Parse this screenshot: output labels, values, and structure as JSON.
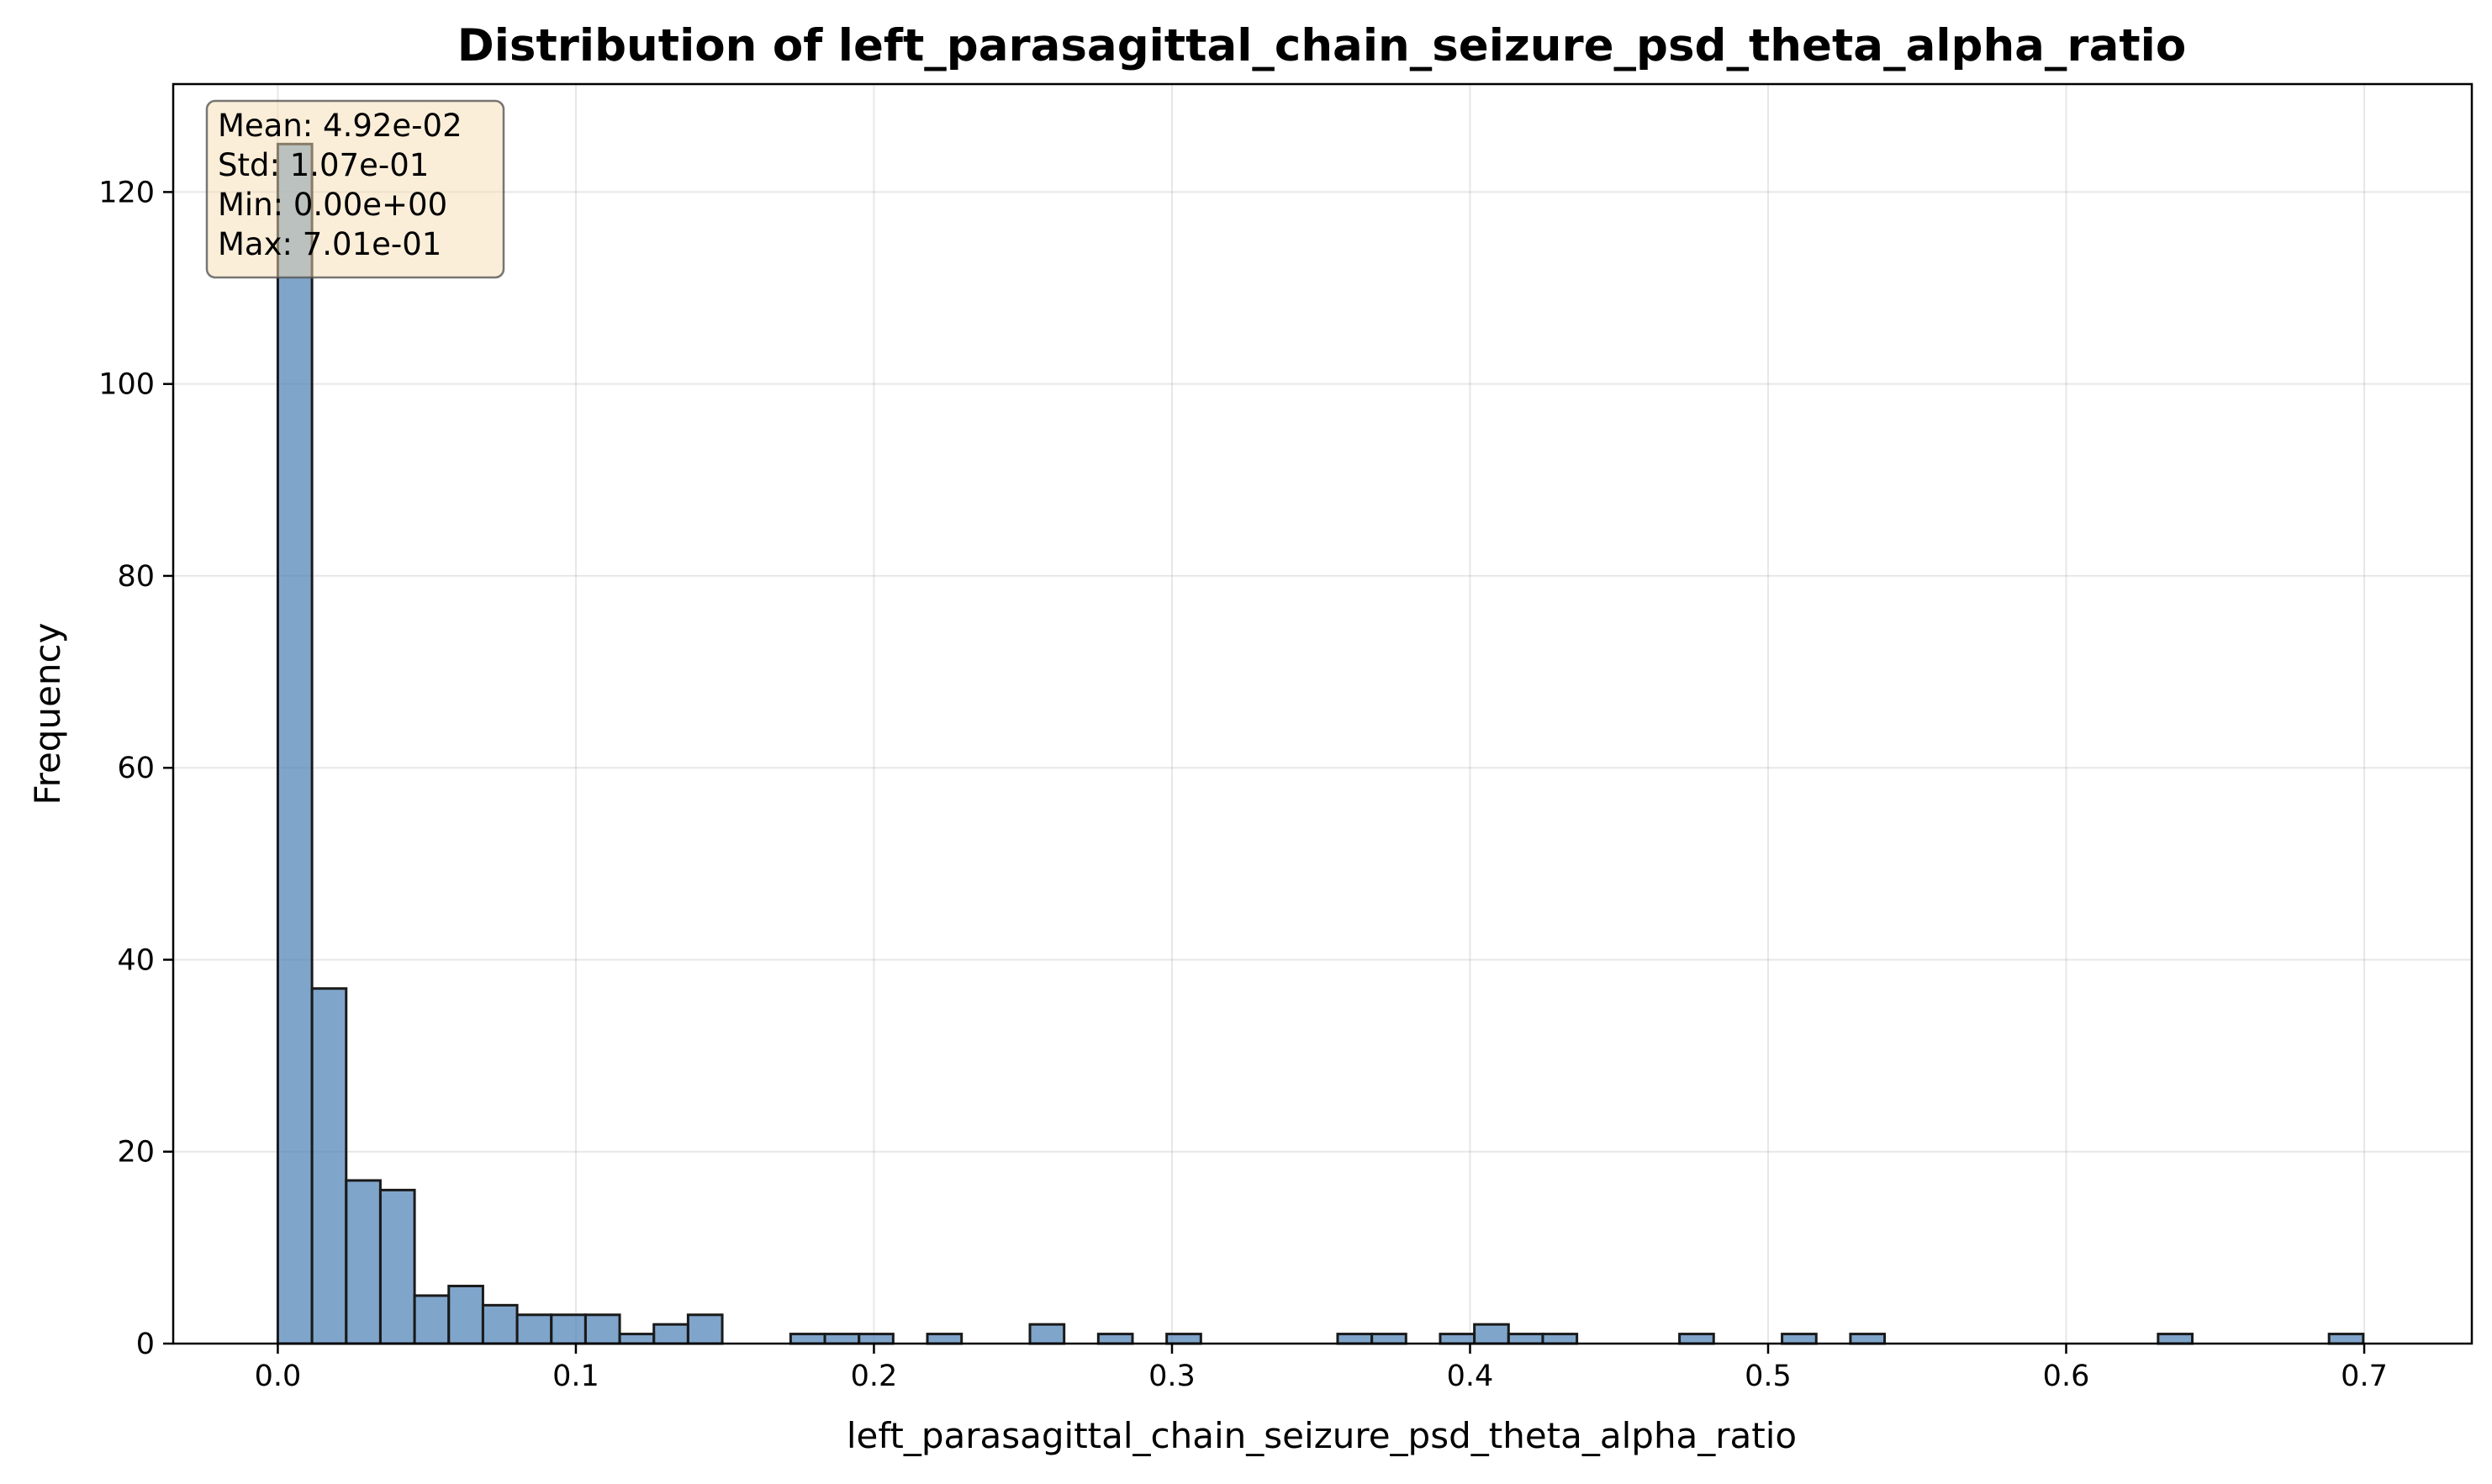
{
  "chart_data": {
    "type": "bar",
    "title": "Distribution of left_parasagittal_chain_seizure_psd_theta_alpha_ratio",
    "xlabel": "left_parasagittal_chain_seizure_psd_theta_alpha_ratio",
    "ylabel": "Frequency",
    "xlim": [
      -0.0351,
      0.7361
    ],
    "ylim": [
      0,
      131.25
    ],
    "xticks": [
      0.0,
      0.1,
      0.2,
      0.3,
      0.4,
      0.5,
      0.6,
      0.7
    ],
    "xtick_labels": [
      "0.0",
      "0.1",
      "0.2",
      "0.3",
      "0.4",
      "0.5",
      "0.6",
      "0.7"
    ],
    "yticks": [
      0,
      20,
      40,
      60,
      80,
      100,
      120
    ],
    "ytick_labels": [
      "0",
      "20",
      "40",
      "60",
      "80",
      "100",
      "120"
    ],
    "grid": true,
    "bin_start": 0.0,
    "bin_width": 0.01147,
    "counts": [
      125,
      37,
      17,
      16,
      5,
      6,
      4,
      3,
      3,
      3,
      1,
      2,
      3,
      0,
      0,
      1,
      1,
      1,
      0,
      1,
      0,
      0,
      2,
      0,
      1,
      0,
      1,
      0,
      0,
      0,
      0,
      1,
      1,
      0,
      1,
      2,
      1,
      1,
      0,
      0,
      0,
      1,
      0,
      0,
      1,
      0,
      1,
      0,
      0,
      0,
      0,
      0,
      0,
      0,
      0,
      1,
      0,
      0,
      0,
      0,
      1
    ],
    "bar_color": "#4a7fb5",
    "bar_edge_color": "#1a1a1a",
    "stats_box": {
      "lines": [
        "Mean: 4.92e-02",
        "Std: 1.07e-01",
        "Min: 0.00e+00",
        "Max: 7.01e-01"
      ],
      "placement": "top-left",
      "background": "#f5deb3"
    }
  }
}
